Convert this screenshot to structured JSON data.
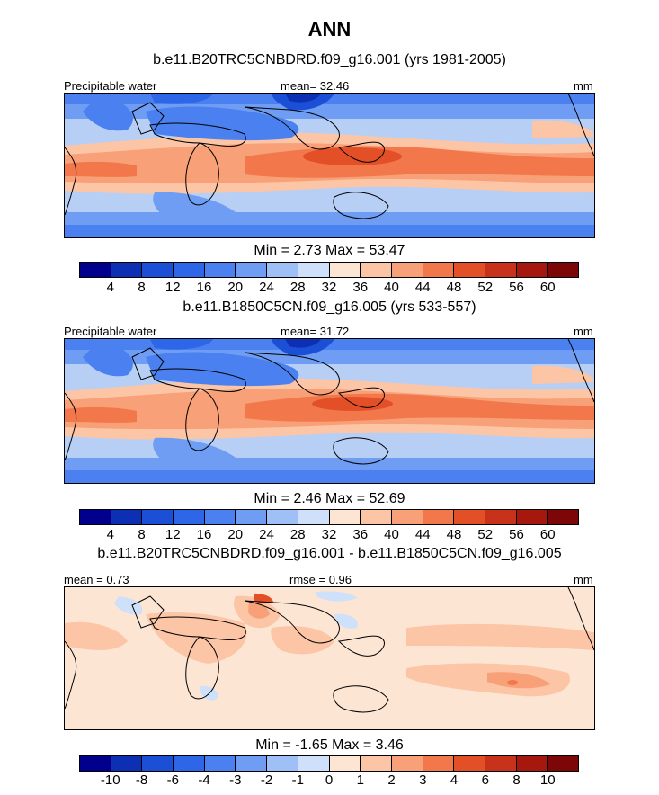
{
  "title": "ANN",
  "panels": [
    {
      "case": "b.e11.B20TRC5CNBDRD.f09_g16.001 (yrs 1981-2005)",
      "left_label": "Precipitable water",
      "mean_label": "mean=",
      "mean_value": "32.46",
      "units": "mm",
      "min_label": "Min =",
      "min_value": "2.73",
      "max_label": "Max =",
      "max_value": "53.47"
    },
    {
      "case": "b.e11.B1850C5CN.f09_g16.005 (yrs 533-557)",
      "left_label": "Precipitable water",
      "mean_label": "mean=",
      "mean_value": "31.72",
      "units": "mm",
      "min_label": "Min =",
      "min_value": "2.46",
      "max_label": "Max =",
      "max_value": "52.69"
    },
    {
      "case": "b.e11.B20TRC5CNBDRD.f09_g16.001 - b.e11.B1850C5CN.f09_g16.005",
      "left_label": "mean =",
      "left_value": "0.73",
      "rmse_label": "rmse =",
      "rmse_value": "0.96",
      "units": "mm",
      "min_label": "Min =",
      "min_value": "-1.65",
      "max_label": "Max =",
      "max_value": "3.46"
    }
  ],
  "colorbar_abs": {
    "labels": [
      "4",
      "8",
      "12",
      "16",
      "20",
      "24",
      "28",
      "32",
      "36",
      "40",
      "44",
      "48",
      "52",
      "56",
      "60"
    ],
    "colors": [
      "#00008c",
      "#0c2fb3",
      "#1a4fd6",
      "#2e66e8",
      "#4a80ef",
      "#6f9df3",
      "#9fc0f7",
      "#cfe0fb",
      "#fde5d4",
      "#fcc5a6",
      "#f8a077",
      "#f2784c",
      "#e35028",
      "#c8321a",
      "#a6180e",
      "#7d0707"
    ]
  },
  "colorbar_diff": {
    "labels": [
      "-10",
      "-8",
      "-6",
      "-4",
      "-3",
      "-2",
      "-1",
      "0",
      "1",
      "2",
      "3",
      "4",
      "6",
      "8",
      "10"
    ],
    "colors": [
      "#00008c",
      "#0c2fb3",
      "#1a4fd6",
      "#2e66e8",
      "#4a80ef",
      "#6f9df3",
      "#9fc0f7",
      "#cfe0fb",
      "#fde5d4",
      "#fcc5a6",
      "#f8a077",
      "#f2784c",
      "#e35028",
      "#c8321a",
      "#a6180e",
      "#7d0707"
    ]
  }
}
